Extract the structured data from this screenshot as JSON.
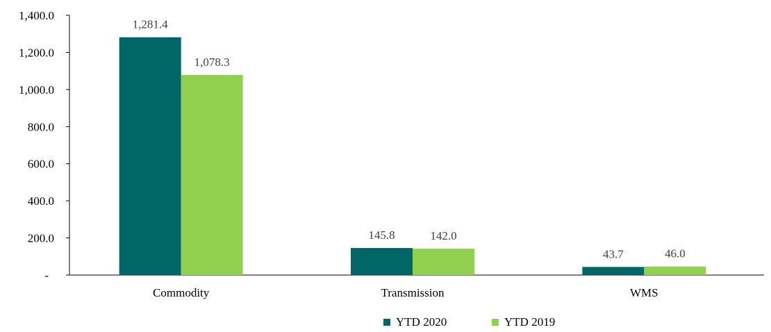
{
  "chart_data": {
    "type": "bar",
    "categories": [
      "Commodity",
      "Transmission",
      "WMS"
    ],
    "series": [
      {
        "name": "YTD 2020",
        "values": [
          1281.4,
          145.8,
          43.7
        ],
        "labels": [
          "1,281.4",
          "145.8",
          "43.7"
        ],
        "color": "#006666"
      },
      {
        "name": "YTD 2019",
        "values": [
          1078.3,
          142.0,
          46.0
        ],
        "labels": [
          "1,078.3",
          "142.0",
          "46.0"
        ],
        "color": "#92D050"
      }
    ],
    "yticks": [
      {
        "value": 0,
        "label": "-"
      },
      {
        "value": 200,
        "label": "200.0"
      },
      {
        "value": 400,
        "label": "400.0"
      },
      {
        "value": 600,
        "label": "600.0"
      },
      {
        "value": 800,
        "label": "800.0"
      },
      {
        "value": 1000,
        "label": "1,000.0"
      },
      {
        "value": 1200,
        "label": "1,200.0"
      },
      {
        "value": 1400,
        "label": "1,400.0"
      }
    ],
    "ylim": [
      0,
      1400
    ],
    "grid": false,
    "legend_position": "bottom",
    "title": "",
    "xlabel": "",
    "ylabel": ""
  }
}
